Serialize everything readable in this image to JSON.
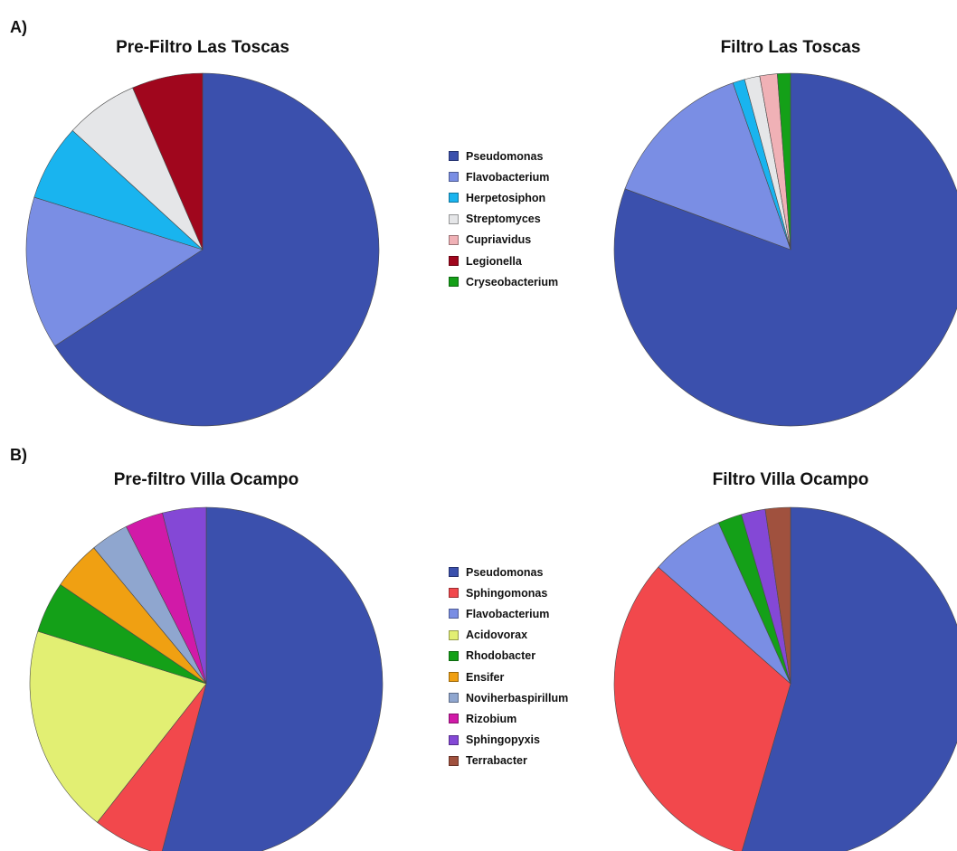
{
  "panels": [
    {
      "label": "A)"
    },
    {
      "label": "B)"
    }
  ],
  "legends": [
    [
      {
        "name": "Pseudomonas",
        "color": "#3b50ad"
      },
      {
        "name": "Flavobacterium",
        "color": "#7a8ee4"
      },
      {
        "name": "Herpetosiphon",
        "color": "#19b4ef"
      },
      {
        "name": "Streptomyces",
        "color": "#e5e6e8"
      },
      {
        "name": "Cupriavidus",
        "color": "#f0b1b6"
      },
      {
        "name": "Legionella",
        "color": "#a0061d"
      },
      {
        "name": "Cryseobacterium",
        "color": "#14a018"
      }
    ],
    [
      {
        "name": "Pseudomonas",
        "color": "#3b50ad"
      },
      {
        "name": "Sphingomonas",
        "color": "#f2484c"
      },
      {
        "name": "Flavobacterium",
        "color": "#7a8ee4"
      },
      {
        "name": "Acidovorax",
        "color": "#e2ef73"
      },
      {
        "name": "Rhodobacter",
        "color": "#14a018"
      },
      {
        "name": "Ensifer",
        "color": "#f0a012"
      },
      {
        "name": "Noviherbaspirillum",
        "color": "#8fa6cf"
      },
      {
        "name": "Rizobium",
        "color": "#d11aa8"
      },
      {
        "name": "Sphingopyxis",
        "color": "#8448d6"
      },
      {
        "name": "Terrabacter",
        "color": "#a0513e"
      }
    ]
  ],
  "chart_data": [
    {
      "type": "pie",
      "title": "Pre-Filtro Las Toscas",
      "series": [
        {
          "name": "Pseudomonas",
          "value": 65.8,
          "color": "#3b50ad"
        },
        {
          "name": "Flavobacterium",
          "value": 14.0,
          "color": "#7a8ee4"
        },
        {
          "name": "Herpetosiphon",
          "value": 7.0,
          "color": "#19b4ef"
        },
        {
          "name": "Streptomyces",
          "value": 6.7,
          "color": "#e5e6e8"
        },
        {
          "name": "Legionella",
          "value": 6.5,
          "color": "#a0061d"
        }
      ]
    },
    {
      "type": "pie",
      "title": "Filtro Las Toscas",
      "series": [
        {
          "name": "Pseudomonas",
          "value": 80.6,
          "color": "#3b50ad"
        },
        {
          "name": "Flavobacterium",
          "value": 14.1,
          "color": "#7a8ee4"
        },
        {
          "name": "Herpetosiphon",
          "value": 1.1,
          "color": "#19b4ef"
        },
        {
          "name": "Streptomyces",
          "value": 1.4,
          "color": "#e5e6e8"
        },
        {
          "name": "Cupriavidus",
          "value": 1.6,
          "color": "#f0b1b6"
        },
        {
          "name": "Cryseobacterium",
          "value": 1.2,
          "color": "#14a018"
        }
      ]
    },
    {
      "type": "pie",
      "title": "Pre-filtro Villa Ocampo",
      "series": [
        {
          "name": "Pseudomonas",
          "value": 54.1,
          "color": "#3b50ad"
        },
        {
          "name": "Sphingomonas",
          "value": 6.5,
          "color": "#f2484c"
        },
        {
          "name": "Acidovorax",
          "value": 19.2,
          "color": "#e2ef73"
        },
        {
          "name": "Rhodobacter",
          "value": 4.7,
          "color": "#14a018"
        },
        {
          "name": "Ensifer",
          "value": 4.5,
          "color": "#f0a012"
        },
        {
          "name": "Noviherbaspirillum",
          "value": 3.5,
          "color": "#8fa6cf"
        },
        {
          "name": "Rizobium",
          "value": 3.5,
          "color": "#d11aa8"
        },
        {
          "name": "Sphingopyxis",
          "value": 4.0,
          "color": "#8448d6"
        }
      ]
    },
    {
      "type": "pie",
      "title": "Filtro Villa Ocampo",
      "series": [
        {
          "name": "Pseudomonas",
          "value": 54.5,
          "color": "#3b50ad"
        },
        {
          "name": "Sphingomonas",
          "value": 32.0,
          "color": "#f2484c"
        },
        {
          "name": "Flavobacterium",
          "value": 6.8,
          "color": "#7a8ee4"
        },
        {
          "name": "Rhodobacter",
          "value": 2.2,
          "color": "#14a018"
        },
        {
          "name": "Sphingopyxis",
          "value": 2.2,
          "color": "#8448d6"
        },
        {
          "name": "Terrabacter",
          "value": 2.3,
          "color": "#a0513e"
        }
      ]
    }
  ]
}
